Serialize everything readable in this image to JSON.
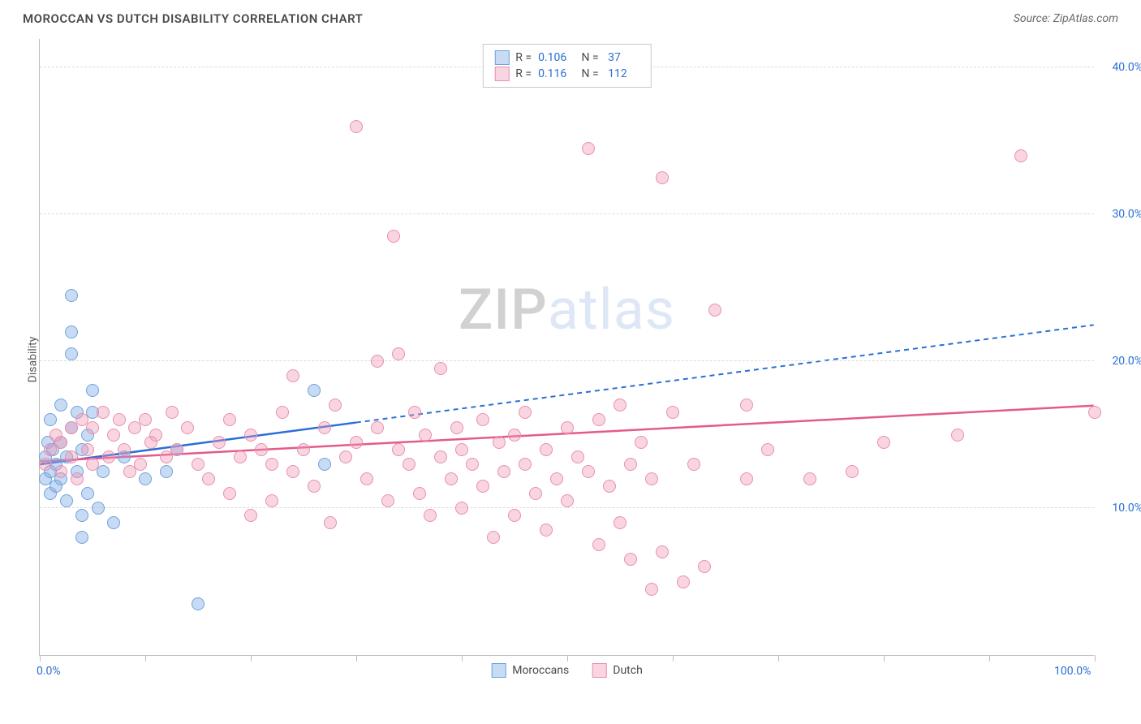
{
  "title": "MOROCCAN VS DUTCH DISABILITY CORRELATION CHART",
  "source": "Source: ZipAtlas.com",
  "ylabel": "Disability",
  "watermark": {
    "part1": "ZIP",
    "part2": "atlas"
  },
  "chart": {
    "type": "scatter",
    "xlim": [
      0,
      100
    ],
    "ylim": [
      0,
      42
    ],
    "x_tick_positions": [
      0,
      10,
      20,
      30,
      40,
      50,
      60,
      70,
      80,
      90,
      100
    ],
    "x_tick_labels_shown": {
      "0": "0.0%",
      "100": "100.0%"
    },
    "y_grid_positions": [
      10,
      20,
      30,
      40
    ],
    "y_tick_labels": {
      "10": "10.0%",
      "20": "20.0%",
      "30": "30.0%",
      "40": "40.0%"
    },
    "background_color": "#ffffff",
    "grid_color": "#dcdcdc",
    "axis_color": "#bdbdbd",
    "tick_label_color": "#2a6fd6",
    "marker_radius": 8,
    "marker_border_width": 1,
    "series": [
      {
        "name": "Moroccans",
        "fill": "rgba(130,175,230,0.45)",
        "stroke": "#6fa3db",
        "trend_color": "#2a6fd6",
        "trend_dash": "6,5",
        "trend_solid_until_x": 30,
        "R": "0.106",
        "N": "37",
        "trend": {
          "x1": 0,
          "y1": 13.0,
          "x2": 100,
          "y2": 22.5
        },
        "points": [
          [
            0.5,
            12.0
          ],
          [
            0.5,
            13.5
          ],
          [
            0.8,
            14.5
          ],
          [
            1.0,
            11.0
          ],
          [
            1.0,
            12.5
          ],
          [
            1.0,
            16.0
          ],
          [
            1.2,
            14.0
          ],
          [
            1.5,
            13.0
          ],
          [
            1.5,
            11.5
          ],
          [
            2.0,
            12.0
          ],
          [
            2.0,
            14.5
          ],
          [
            2.0,
            17.0
          ],
          [
            2.5,
            10.5
          ],
          [
            2.5,
            13.5
          ],
          [
            3.0,
            15.5
          ],
          [
            3.0,
            24.5
          ],
          [
            3.0,
            22.0
          ],
          [
            3.0,
            20.5
          ],
          [
            3.5,
            12.5
          ],
          [
            3.5,
            16.5
          ],
          [
            4.0,
            14.0
          ],
          [
            4.0,
            9.5
          ],
          [
            4.0,
            8.0
          ],
          [
            4.5,
            11.0
          ],
          [
            4.5,
            15.0
          ],
          [
            5.0,
            16.5
          ],
          [
            5.0,
            18.0
          ],
          [
            5.5,
            10.0
          ],
          [
            6.0,
            12.5
          ],
          [
            7.0,
            9.0
          ],
          [
            8.0,
            13.5
          ],
          [
            10.0,
            12.0
          ],
          [
            12.0,
            12.5
          ],
          [
            13.0,
            14.0
          ],
          [
            15.0,
            3.5
          ],
          [
            26.0,
            18.0
          ],
          [
            27.0,
            13.0
          ]
        ]
      },
      {
        "name": "Dutch",
        "fill": "rgba(240,150,180,0.40)",
        "stroke": "#e98fb0",
        "trend_color": "#e45a8a",
        "trend_dash": "",
        "trend_solid_until_x": 100,
        "R": "0.116",
        "N": "112",
        "trend": {
          "x1": 0,
          "y1": 13.2,
          "x2": 100,
          "y2": 17.0
        },
        "points": [
          [
            0.5,
            13.0
          ],
          [
            1.0,
            14.0
          ],
          [
            1.5,
            15.0
          ],
          [
            2.0,
            12.5
          ],
          [
            2.0,
            14.5
          ],
          [
            3.0,
            13.5
          ],
          [
            3.0,
            15.5
          ],
          [
            3.5,
            12.0
          ],
          [
            4.0,
            16.0
          ],
          [
            4.5,
            14.0
          ],
          [
            5.0,
            13.0
          ],
          [
            5.0,
            15.5
          ],
          [
            6.0,
            16.5
          ],
          [
            6.5,
            13.5
          ],
          [
            7.0,
            15.0
          ],
          [
            7.5,
            16.0
          ],
          [
            8.0,
            14.0
          ],
          [
            8.5,
            12.5
          ],
          [
            9.0,
            15.5
          ],
          [
            9.5,
            13.0
          ],
          [
            10.0,
            16.0
          ],
          [
            10.5,
            14.5
          ],
          [
            11.0,
            15.0
          ],
          [
            12.0,
            13.5
          ],
          [
            12.5,
            16.5
          ],
          [
            13.0,
            14.0
          ],
          [
            14.0,
            15.5
          ],
          [
            15.0,
            13.0
          ],
          [
            16.0,
            12.0
          ],
          [
            17.0,
            14.5
          ],
          [
            18.0,
            11.0
          ],
          [
            18.0,
            16.0
          ],
          [
            19.0,
            13.5
          ],
          [
            20.0,
            9.5
          ],
          [
            20.0,
            15.0
          ],
          [
            21.0,
            14.0
          ],
          [
            22.0,
            13.0
          ],
          [
            22.0,
            10.5
          ],
          [
            23.0,
            16.5
          ],
          [
            24.0,
            12.5
          ],
          [
            24.0,
            19.0
          ],
          [
            25.0,
            14.0
          ],
          [
            26.0,
            11.5
          ],
          [
            27.0,
            15.5
          ],
          [
            27.5,
            9.0
          ],
          [
            28.0,
            17.0
          ],
          [
            29.0,
            13.5
          ],
          [
            30.0,
            14.5
          ],
          [
            30.0,
            36.0
          ],
          [
            31.0,
            12.0
          ],
          [
            32.0,
            20.0
          ],
          [
            32.0,
            15.5
          ],
          [
            33.0,
            10.5
          ],
          [
            33.5,
            28.5
          ],
          [
            34.0,
            14.0
          ],
          [
            34.0,
            20.5
          ],
          [
            35.0,
            13.0
          ],
          [
            35.5,
            16.5
          ],
          [
            36.0,
            11.0
          ],
          [
            36.5,
            15.0
          ],
          [
            37.0,
            9.5
          ],
          [
            38.0,
            13.5
          ],
          [
            38.0,
            19.5
          ],
          [
            39.0,
            12.0
          ],
          [
            39.5,
            15.5
          ],
          [
            40.0,
            14.0
          ],
          [
            40.0,
            10.0
          ],
          [
            41.0,
            13.0
          ],
          [
            42.0,
            11.5
          ],
          [
            42.0,
            16.0
          ],
          [
            43.0,
            8.0
          ],
          [
            43.5,
            14.5
          ],
          [
            44.0,
            12.5
          ],
          [
            45.0,
            15.0
          ],
          [
            45.0,
            9.5
          ],
          [
            46.0,
            13.0
          ],
          [
            46.0,
            16.5
          ],
          [
            47.0,
            11.0
          ],
          [
            48.0,
            8.5
          ],
          [
            48.0,
            14.0
          ],
          [
            49.0,
            12.0
          ],
          [
            50.0,
            15.5
          ],
          [
            50.0,
            10.5
          ],
          [
            51.0,
            13.5
          ],
          [
            52.0,
            34.5
          ],
          [
            52.0,
            12.5
          ],
          [
            53.0,
            7.5
          ],
          [
            53.0,
            16.0
          ],
          [
            54.0,
            11.5
          ],
          [
            55.0,
            17.0
          ],
          [
            55.0,
            9.0
          ],
          [
            56.0,
            13.0
          ],
          [
            56.0,
            6.5
          ],
          [
            57.0,
            14.5
          ],
          [
            58.0,
            4.5
          ],
          [
            58.0,
            12.0
          ],
          [
            59.0,
            32.5
          ],
          [
            59.0,
            7.0
          ],
          [
            60.0,
            16.5
          ],
          [
            61.0,
            5.0
          ],
          [
            62.0,
            13.0
          ],
          [
            63.0,
            6.0
          ],
          [
            64.0,
            23.5
          ],
          [
            67.0,
            17.0
          ],
          [
            67.0,
            12.0
          ],
          [
            69.0,
            14.0
          ],
          [
            73.0,
            12.0
          ],
          [
            77.0,
            12.5
          ],
          [
            80.0,
            14.5
          ],
          [
            87.0,
            15.0
          ],
          [
            93.0,
            34.0
          ],
          [
            100.0,
            16.5
          ]
        ]
      }
    ]
  },
  "legend_bottom": [
    {
      "label": "Moroccans",
      "fill": "rgba(130,175,230,0.45)",
      "stroke": "#6fa3db"
    },
    {
      "label": "Dutch",
      "fill": "rgba(240,150,180,0.40)",
      "stroke": "#e98fb0"
    }
  ]
}
